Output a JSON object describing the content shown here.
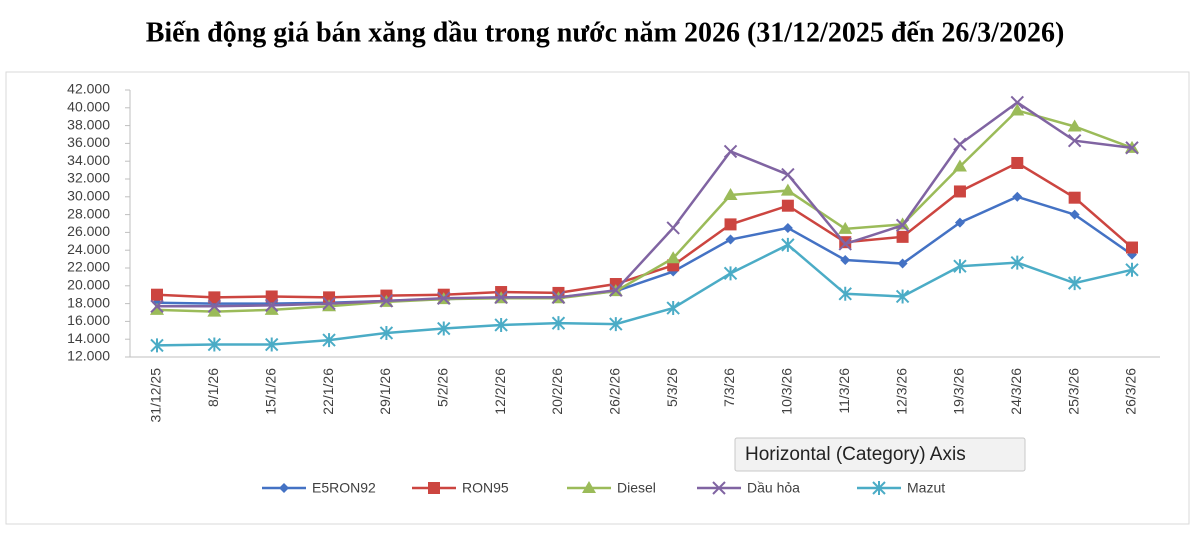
{
  "chart_data": {
    "type": "line",
    "title": "Biến động giá bán xăng dầu trong nước năm 2026 (31/12/2025 đến 26/3/2026)",
    "categories": [
      "31/12/25",
      "8/1/26",
      "15/1/26",
      "22/1/26",
      "29/1/26",
      "5/2/26",
      "12/2/26",
      "20/2/26",
      "26/2/26",
      "5/3/26",
      "7/3/26",
      "10/3/26",
      "11/3/26",
      "12/3/26",
      "19/3/26",
      "24/3/26",
      "25/3/26",
      "26/3/26"
    ],
    "series": [
      {
        "name": "E5RON92",
        "color": "#4472c4",
        "marker": "diamond",
        "values": [
          18100,
          18000,
          18000,
          18100,
          18300,
          18500,
          18700,
          18700,
          19400,
          21600,
          25200,
          26500,
          22900,
          22500,
          27100,
          30000,
          28000,
          23500
        ]
      },
      {
        "name": "RON95",
        "color": "#cc4540",
        "marker": "square",
        "values": [
          19000,
          18700,
          18800,
          18700,
          18900,
          19000,
          19300,
          19200,
          20200,
          22300,
          26900,
          29000,
          24900,
          25500,
          30600,
          33800,
          29900,
          24300
        ]
      },
      {
        "name": "Diesel",
        "color": "#9bbb59",
        "marker": "triangle",
        "values": [
          17300,
          17100,
          17300,
          17700,
          18200,
          18500,
          18600,
          18600,
          19400,
          23100,
          30200,
          30700,
          26400,
          26900,
          33400,
          39700,
          37900,
          35500
        ]
      },
      {
        "name": "Dầu hỏa",
        "color": "#8064a2",
        "marker": "x",
        "values": [
          17700,
          17700,
          17800,
          18000,
          18300,
          18600,
          18700,
          18700,
          19500,
          26500,
          35100,
          32500,
          24700,
          26800,
          35900,
          40600,
          36300,
          35500
        ]
      },
      {
        "name": "Mazut",
        "color": "#4bacc6",
        "marker": "star",
        "values": [
          13300,
          13400,
          13400,
          13900,
          14700,
          15200,
          15600,
          15800,
          15700,
          17500,
          21400,
          24600,
          19100,
          18800,
          22200,
          22600,
          20300,
          21800
        ]
      }
    ],
    "ylim": [
      12000,
      42000
    ],
    "yticks": [
      {
        "value": 12000,
        "label": "12.000"
      },
      {
        "value": 14000,
        "label": "14.000"
      },
      {
        "value": 16000,
        "label": "16.000"
      },
      {
        "value": 18000,
        "label": "18.000"
      },
      {
        "value": 20000,
        "label": "20.000"
      },
      {
        "value": 22000,
        "label": "22.000"
      },
      {
        "value": 24000,
        "label": "24.000"
      },
      {
        "value": 26000,
        "label": "26.000"
      },
      {
        "value": 28000,
        "label": "28.000"
      },
      {
        "value": 30000,
        "label": "30.000"
      },
      {
        "value": 32000,
        "label": "32.000"
      },
      {
        "value": 34000,
        "label": "34.000"
      },
      {
        "value": 36000,
        "label": "36.000"
      },
      {
        "value": 38000,
        "label": "38.000"
      },
      {
        "value": 40000,
        "label": "40.000"
      },
      {
        "value": 42000,
        "label": "42.000"
      }
    ],
    "legend": "bottom",
    "tooltip": "Horizontal (Category) Axis"
  }
}
